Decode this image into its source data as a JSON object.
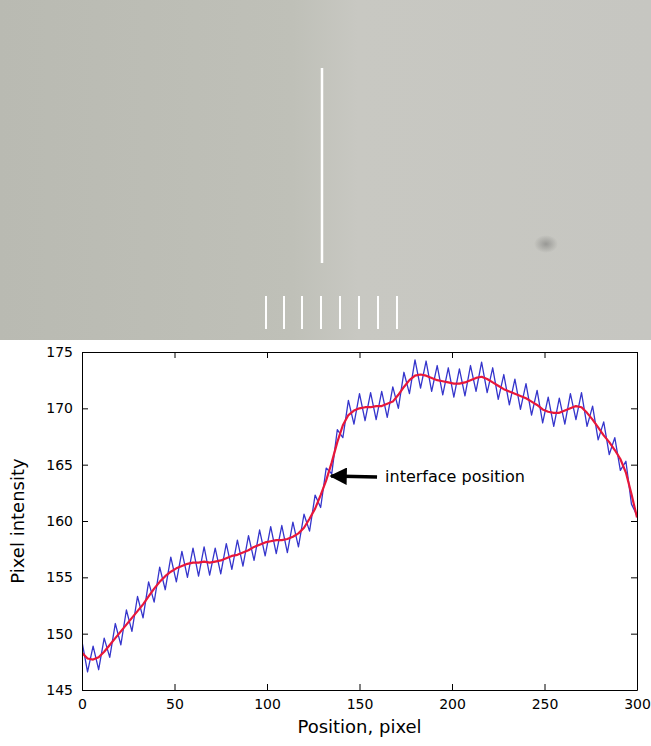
{
  "chart_data": {
    "type": "line",
    "x_label": "Position, pixel",
    "y_label": "Pixel intensity",
    "xlim": [
      0,
      300
    ],
    "ylim": [
      145,
      175
    ],
    "xticks": [
      0,
      50,
      100,
      150,
      200,
      250,
      300
    ],
    "yticks": [
      145,
      150,
      155,
      160,
      165,
      170,
      175
    ],
    "grid": false,
    "x": [
      0,
      3,
      6,
      9,
      12,
      15,
      18,
      21,
      24,
      27,
      30,
      33,
      36,
      39,
      42,
      45,
      48,
      51,
      54,
      57,
      60,
      63,
      66,
      69,
      72,
      75,
      78,
      81,
      84,
      87,
      90,
      93,
      96,
      99,
      102,
      105,
      108,
      111,
      114,
      117,
      120,
      123,
      126,
      129,
      132,
      135,
      138,
      141,
      144,
      147,
      150,
      153,
      156,
      159,
      162,
      165,
      168,
      171,
      174,
      177,
      180,
      183,
      186,
      189,
      192,
      195,
      198,
      201,
      204,
      207,
      210,
      213,
      216,
      219,
      222,
      225,
      228,
      231,
      234,
      237,
      240,
      243,
      246,
      249,
      252,
      255,
      258,
      261,
      264,
      267,
      270,
      273,
      276,
      279,
      282,
      285,
      288,
      291,
      294,
      297,
      300
    ],
    "series": [
      {
        "color": "#3535cc",
        "values": [
          149.3,
          146.6,
          148.9,
          146.8,
          149.6,
          147.9,
          150.9,
          149.0,
          152.1,
          150.2,
          153.3,
          151.4,
          154.6,
          152.8,
          155.9,
          153.9,
          156.8,
          154.6,
          157.3,
          155.0,
          157.6,
          155.1,
          157.7,
          155.2,
          157.6,
          155.3,
          158.0,
          155.7,
          158.3,
          156.0,
          158.7,
          156.5,
          159.2,
          156.9,
          159.5,
          157.1,
          159.6,
          157.2,
          159.9,
          157.7,
          160.6,
          159.1,
          162.3,
          161.2,
          164.7,
          164.2,
          168.1,
          167.4,
          170.7,
          168.6,
          171.3,
          168.9,
          171.4,
          169.0,
          171.5,
          169.2,
          171.9,
          170.0,
          173.2,
          171.3,
          174.3,
          171.8,
          174.2,
          171.5,
          173.8,
          171.2,
          173.6,
          171.0,
          173.5,
          171.1,
          173.8,
          171.5,
          174.1,
          171.4,
          173.6,
          170.8,
          173.0,
          170.3,
          172.6,
          169.9,
          172.2,
          169.4,
          171.6,
          168.7,
          171.0,
          168.4,
          170.9,
          168.6,
          171.3,
          169.0,
          171.4,
          168.4,
          170.2,
          167.2,
          168.8,
          165.9,
          167.4,
          164.5,
          165.3,
          161.5,
          160.5
        ]
      },
      {
        "color": "#e8173a",
        "values": [
          148.3,
          147.8,
          147.7,
          147.9,
          148.4,
          149.0,
          149.6,
          150.2,
          150.8,
          151.4,
          152.0,
          152.6,
          153.3,
          154.0,
          154.6,
          155.1,
          155.5,
          155.8,
          156.0,
          156.2,
          156.3,
          156.3,
          156.4,
          156.3,
          156.4,
          156.5,
          156.7,
          156.9,
          157.0,
          157.2,
          157.4,
          157.7,
          157.9,
          158.1,
          158.2,
          158.3,
          158.3,
          158.4,
          158.6,
          158.9,
          159.4,
          160.2,
          161.1,
          162.3,
          163.6,
          165.2,
          167.0,
          168.5,
          169.4,
          169.8,
          170.0,
          170.1,
          170.1,
          170.2,
          170.2,
          170.4,
          170.6,
          171.2,
          171.9,
          172.5,
          172.9,
          173.0,
          172.9,
          172.7,
          172.5,
          172.4,
          172.3,
          172.2,
          172.2,
          172.3,
          172.5,
          172.7,
          172.8,
          172.6,
          172.3,
          172.0,
          171.7,
          171.5,
          171.3,
          171.1,
          170.9,
          170.6,
          170.3,
          169.9,
          169.7,
          169.6,
          169.6,
          169.8,
          170.0,
          170.2,
          170.1,
          169.6,
          169.0,
          168.3,
          167.6,
          167.0,
          166.3,
          165.5,
          164.3,
          162.4,
          160.3
        ]
      }
    ],
    "annotations": [
      {
        "text": "interface position",
        "x": 133,
        "y": 164
      }
    ]
  }
}
